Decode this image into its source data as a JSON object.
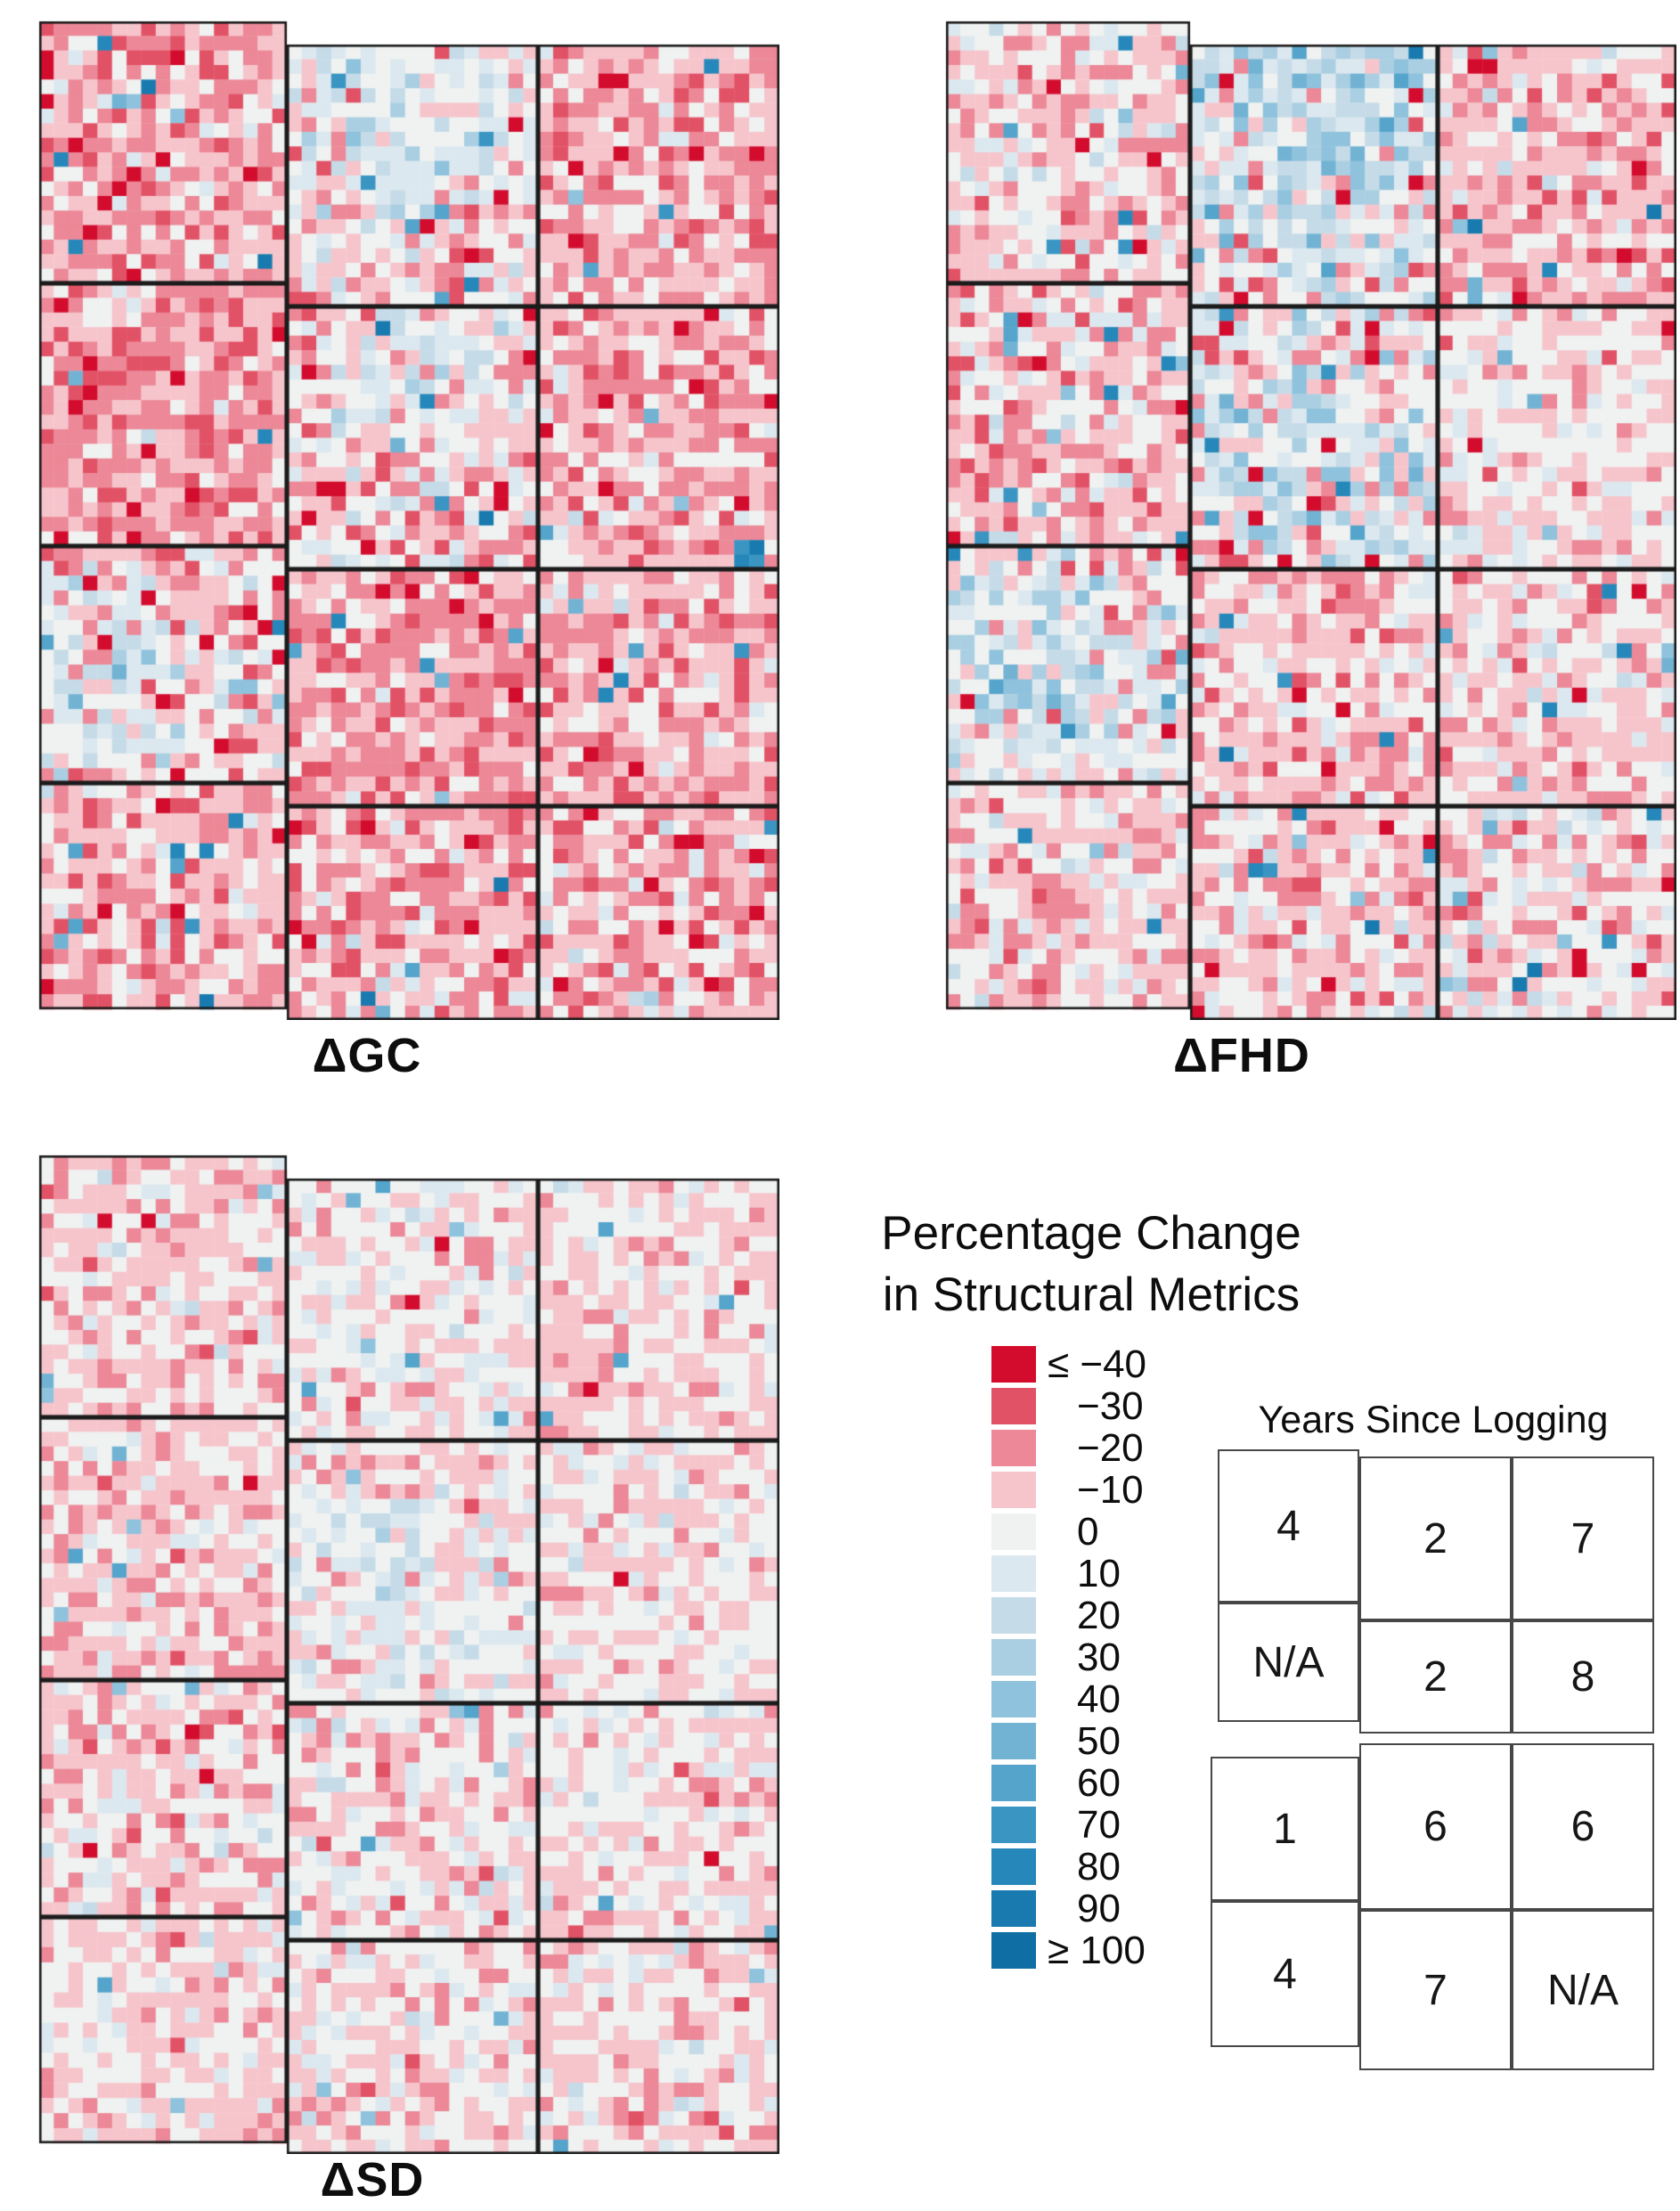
{
  "legend_title": {
    "line1": "Percentage Change",
    "line2": "in Structural Metrics"
  },
  "years_title": "Years Since Logging",
  "chart_data": {
    "type": "heatmap",
    "description": "Per-pixel percentage change in three forest structural metrics (GC, FHD, SD) across a mosaic of twelve logged forest plots (4 rows x 3 columns). Cell colors bin percent change from <=-40 (dark red) through 0 (white) to >=+100 (dark blue). A companion outline map gives years since logging for each plot.",
    "color_breaks": [
      -40,
      -30,
      -20,
      -10,
      0,
      10,
      20,
      30,
      40,
      50,
      60,
      70,
      80,
      90,
      100
    ],
    "legend": {
      "entries": [
        {
          "label": "≤ −40",
          "color": "#d30c2e"
        },
        {
          "label": "−30",
          "color": "#e25266"
        },
        {
          "label": "−20",
          "color": "#ec8897"
        },
        {
          "label": "−10",
          "color": "#f6c5cc"
        },
        {
          "label": "0",
          "color": "#eff2f1"
        },
        {
          "label": "10",
          "color": "#dce8ef"
        },
        {
          "label": "20",
          "color": "#c6dbe8"
        },
        {
          "label": "30",
          "color": "#aacfe2"
        },
        {
          "label": "40",
          "color": "#8fc2dc"
        },
        {
          "label": "50",
          "color": "#72b3d4"
        },
        {
          "label": "60",
          "color": "#55a4cb"
        },
        {
          "label": "70",
          "color": "#3b95c3"
        },
        {
          "label": "80",
          "color": "#2688ba"
        },
        {
          "label": "90",
          "color": "#187aae"
        },
        {
          "label": "≥ 100",
          "color": "#0f6ea4"
        }
      ]
    },
    "panels": [
      {
        "label": "ΔGC",
        "seed": 11,
        "speckle": {
          "blue_p": 0.018,
          "blue_mag": 55,
          "red_p": 0.012,
          "red_mag": 28
        },
        "tiles": [
          {
            "mean": -14,
            "sd": 11
          },
          {
            "mean": -5,
            "sd": 16,
            "cluster": {
              "cx": 0.55,
              "cy": 0.3,
              "r": 0.5,
              "boost": 24
            }
          },
          {
            "mean": -13,
            "sd": 10
          },
          {
            "mean": -15,
            "sd": 10
          },
          {
            "mean": -7,
            "sd": 15,
            "cluster": {
              "cx": 0.45,
              "cy": 0.2,
              "r": 0.4,
              "boost": 16
            }
          },
          {
            "mean": -12,
            "sd": 10
          },
          {
            "mean": -7,
            "sd": 15,
            "cluster": {
              "cx": 0.3,
              "cy": 0.55,
              "r": 0.55,
              "boost": 16
            }
          },
          {
            "mean": -15,
            "sd": 10
          },
          {
            "mean": -13,
            "sd": 10
          },
          {
            "mean": -12,
            "sd": 10
          },
          {
            "mean": -14,
            "sd": 11
          },
          {
            "mean": -11,
            "sd": 12
          }
        ]
      },
      {
        "label": "ΔFHD",
        "seed": 23,
        "speckle": {
          "blue_p": 0.022,
          "blue_mag": 55,
          "red_p": 0.008,
          "red_mag": 28
        },
        "tiles": [
          {
            "mean": -7,
            "sd": 11
          },
          {
            "mean": 5,
            "sd": 20,
            "cluster": {
              "cx": 0.6,
              "cy": 0.3,
              "r": 0.55,
              "boost": 22
            }
          },
          {
            "mean": -10,
            "sd": 10
          },
          {
            "mean": -10,
            "sd": 11
          },
          {
            "mean": 1,
            "sd": 18,
            "cluster": {
              "cx": 0.55,
              "cy": 0.65,
              "r": 0.5,
              "boost": 16
            }
          },
          {
            "mean": -4,
            "sd": 9
          },
          {
            "mean": -1,
            "sd": 16,
            "cluster": {
              "cx": 0.35,
              "cy": 0.5,
              "r": 0.55,
              "boost": 18
            }
          },
          {
            "mean": -8,
            "sd": 10
          },
          {
            "mean": -7,
            "sd": 10
          },
          {
            "mean": -6,
            "sd": 11
          },
          {
            "mean": -8,
            "sd": 10
          },
          {
            "mean": -5,
            "sd": 11
          }
        ]
      },
      {
        "label": "ΔSD",
        "seed": 37,
        "speckle": {
          "blue_p": 0.01,
          "blue_mag": 30,
          "red_p": 0.006,
          "red_mag": 22
        },
        "tiles": [
          {
            "mean": -7,
            "sd": 8
          },
          {
            "mean": -2,
            "sd": 9
          },
          {
            "mean": -7,
            "sd": 8
          },
          {
            "mean": -8,
            "sd": 8
          },
          {
            "mean": -2,
            "sd": 10,
            "cluster": {
              "cx": 0.4,
              "cy": 0.5,
              "r": 0.45,
              "boost": 7
            }
          },
          {
            "mean": -4,
            "sd": 8
          },
          {
            "mean": -6,
            "sd": 9
          },
          {
            "mean": -3,
            "sd": 10
          },
          {
            "mean": -4,
            "sd": 8
          },
          {
            "mean": -6,
            "sd": 8
          },
          {
            "mean": -4,
            "sd": 9
          },
          {
            "mean": -5,
            "sd": 9
          }
        ]
      }
    ],
    "years_since_logging": [
      [
        "4",
        "2",
        "7"
      ],
      [
        "N/A",
        "2",
        "8"
      ],
      [
        "1",
        "6",
        "6"
      ],
      [
        "4",
        "7",
        "N/A"
      ]
    ]
  }
}
